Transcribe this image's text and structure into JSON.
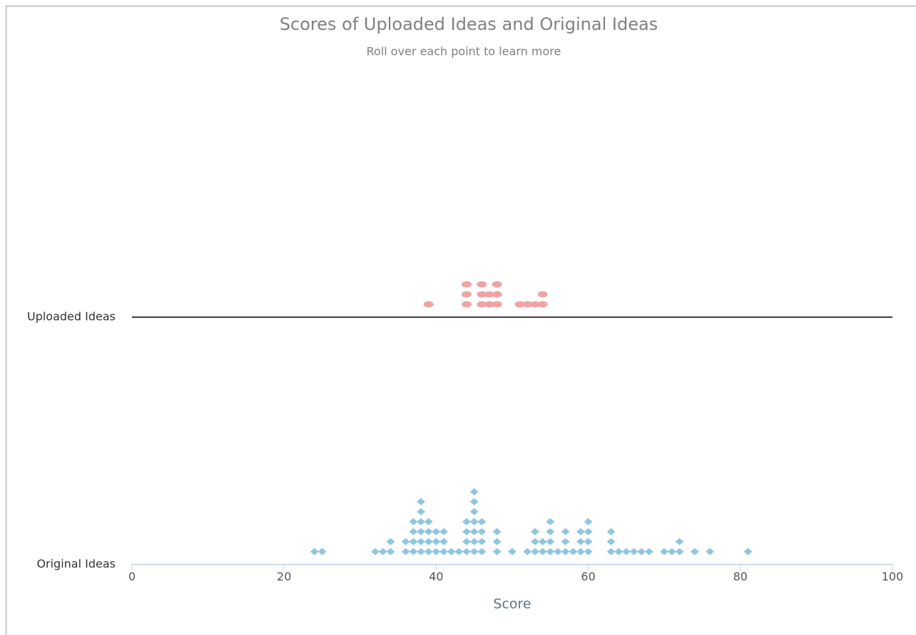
{
  "chart_data": {
    "type": "strip",
    "title": "Scores of Uploaded Ideas and Original Ideas",
    "subtitle": "Roll over each point to learn more",
    "x_label": "Score",
    "xlim": [
      0,
      100
    ],
    "xticks": [
      0,
      20,
      40,
      60,
      80,
      100
    ],
    "series": [
      {
        "name": "Uploaded Ideas",
        "color": "#eea4a4",
        "marker": "ellipse",
        "values": [
          39,
          44,
          44,
          44,
          46,
          46,
          46,
          47,
          47,
          48,
          48,
          48,
          51,
          52,
          53,
          54,
          54
        ]
      },
      {
        "name": "Original Ideas",
        "color": "#8fc6de",
        "marker": "diamond",
        "values": [
          24,
          25,
          32,
          33,
          34,
          34,
          36,
          36,
          37,
          37,
          37,
          37,
          38,
          38,
          38,
          38,
          38,
          38,
          39,
          39,
          39,
          39,
          40,
          40,
          40,
          41,
          41,
          41,
          42,
          43,
          44,
          44,
          44,
          44,
          45,
          45,
          45,
          45,
          45,
          45,
          45,
          46,
          46,
          46,
          46,
          48,
          48,
          48,
          50,
          52,
          53,
          53,
          53,
          54,
          54,
          55,
          55,
          55,
          55,
          56,
          57,
          57,
          57,
          58,
          59,
          59,
          59,
          60,
          60,
          60,
          60,
          63,
          63,
          63,
          64,
          65,
          66,
          67,
          68,
          70,
          71,
          72,
          72,
          74,
          76,
          81
        ]
      }
    ]
  }
}
